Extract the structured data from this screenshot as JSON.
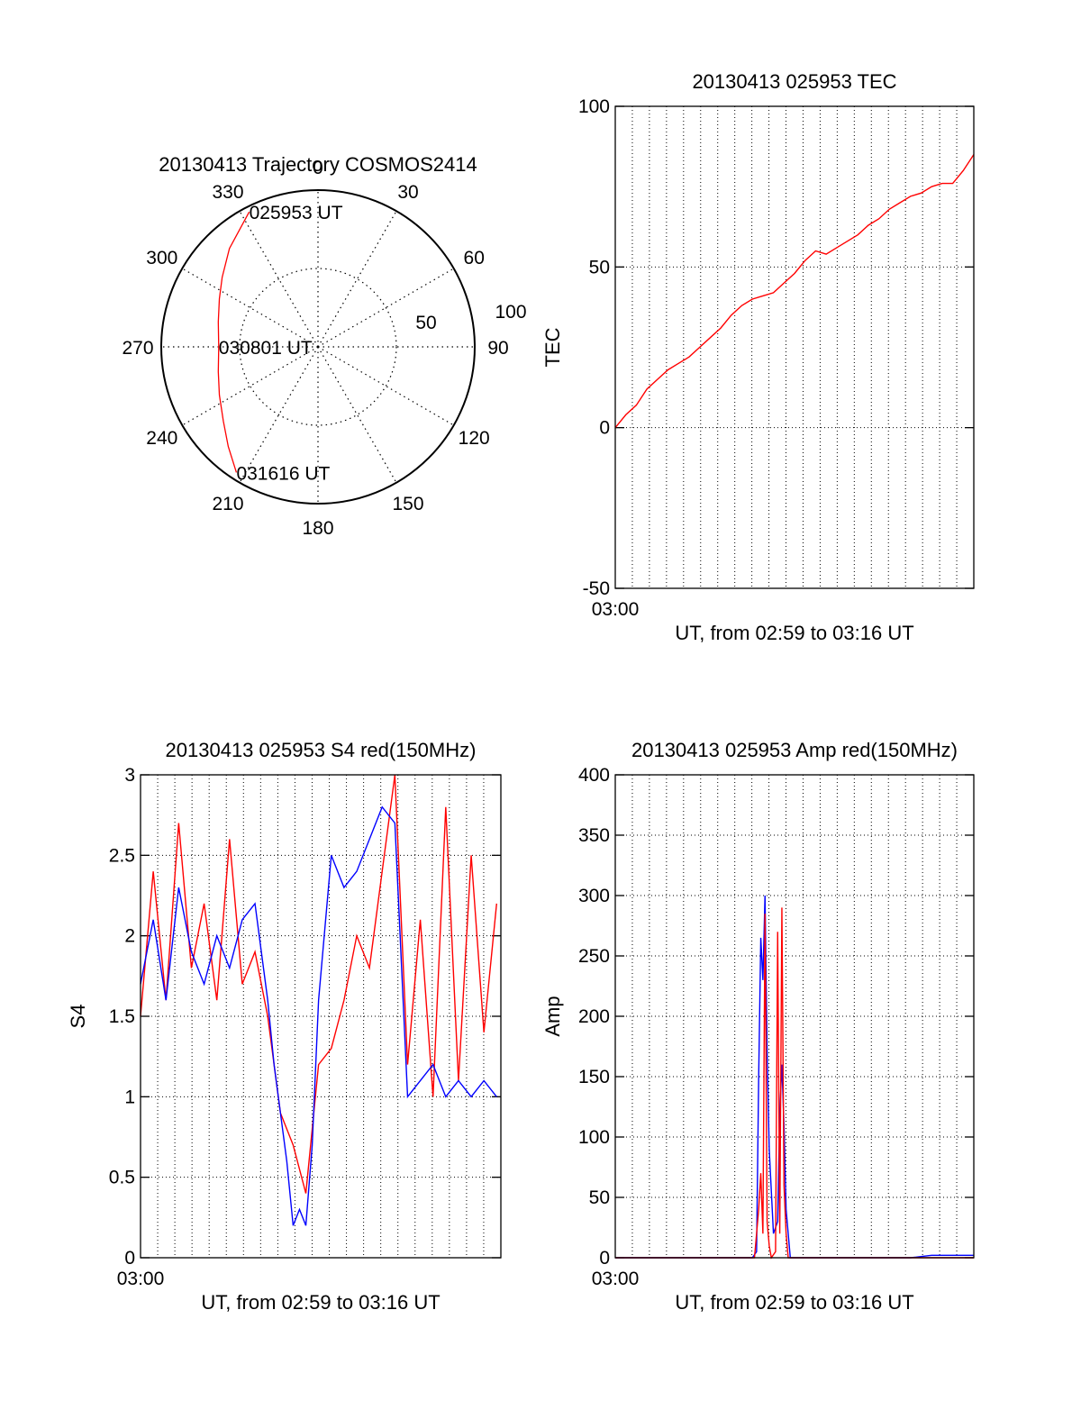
{
  "chart_data": [
    {
      "type": "polar",
      "title": "20130413 Trajectory COSMOS2414",
      "angle_labels": [
        "0",
        "30",
        "60",
        "90",
        "120",
        "150",
        "180",
        "210",
        "240",
        "270",
        "300",
        "330"
      ],
      "radial_labels": [
        "50",
        "100"
      ],
      "trajectory_color": "#ff0000",
      "trajectory": [
        {
          "az": 333,
          "el": 3
        },
        {
          "az": 318,
          "el": 14
        },
        {
          "az": 306,
          "el": 22
        },
        {
          "az": 296,
          "el": 27
        },
        {
          "az": 284,
          "el": 31
        },
        {
          "az": 270,
          "el": 33
        },
        {
          "az": 256,
          "el": 31
        },
        {
          "az": 244,
          "el": 27
        },
        {
          "az": 232,
          "el": 21
        },
        {
          "az": 222,
          "el": 13
        },
        {
          "az": 213,
          "el": 4
        }
      ],
      "annotations": [
        {
          "text": "025953 UT",
          "az": 333,
          "el": 3
        },
        {
          "text": "030801 UT",
          "az": 270,
          "el": 33
        },
        {
          "text": "031616 UT",
          "az": 213,
          "el": 4
        }
      ]
    },
    {
      "type": "line",
      "title": "20130413 025953 TEC",
      "xlabel": "UT, from 02:59 to 03:16 UT",
      "ylabel": "TEC",
      "x_tick_label": "03:00",
      "ylim": [
        -50,
        100
      ],
      "y_ticks": [
        "100",
        "50",
        "0",
        "-50"
      ],
      "grid": true,
      "series": [
        {
          "color": "#ff0000",
          "x": [
            0,
            0.5,
            1,
            1.5,
            2,
            2.5,
            3,
            3.5,
            4,
            4.5,
            5,
            5.5,
            6,
            6.5,
            7,
            7.5,
            8,
            8.5,
            9,
            9.5,
            10,
            10.5,
            11,
            11.5,
            12,
            12.5,
            13,
            13.5,
            14,
            14.5,
            15,
            15.5,
            16,
            16.5,
            17
          ],
          "y": [
            0,
            4,
            7,
            12,
            15,
            18,
            20,
            22,
            25,
            28,
            31,
            35,
            38,
            40,
            41,
            42,
            45,
            48,
            52,
            55,
            54,
            56,
            58,
            60,
            63,
            65,
            68,
            70,
            72,
            73,
            75,
            76,
            76,
            80,
            85
          ]
        }
      ]
    },
    {
      "type": "line",
      "title": "20130413 025953 S4 red(150MHz)",
      "xlabel": "UT, from 02:59 to 03:16 UT",
      "ylabel": "S4",
      "x_tick_label": "03:00",
      "ylim": [
        0,
        3
      ],
      "y_ticks": [
        "3",
        "2.5",
        "2",
        "1.5",
        "1",
        "0.5",
        "0"
      ],
      "grid": true,
      "series": [
        {
          "color": "#ff0000",
          "x": [
            0,
            0.6,
            1.2,
            1.8,
            2.4,
            3,
            3.6,
            4.2,
            4.8,
            5.4,
            6,
            6.6,
            7.2,
            7.8,
            8.4,
            9,
            9.6,
            10.2,
            10.8,
            11.4,
            12,
            12.6,
            13.2,
            13.8,
            14.4,
            15,
            15.6,
            16.2,
            16.8
          ],
          "y": [
            1.5,
            2.4,
            1.6,
            2.7,
            1.8,
            2.2,
            1.6,
            2.6,
            1.7,
            1.9,
            1.5,
            0.9,
            0.7,
            0.4,
            1.2,
            1.3,
            1.6,
            2.0,
            1.8,
            2.4,
            3.0,
            1.2,
            2.1,
            1.0,
            2.8,
            1.1,
            2.5,
            1.4,
            2.2
          ]
        },
        {
          "color": "#0000ff",
          "x": [
            0,
            0.6,
            1.2,
            1.8,
            2.4,
            3,
            3.6,
            4.2,
            4.8,
            5.4,
            6,
            6.3,
            6.6,
            6.9,
            7.2,
            7.5,
            7.8,
            8.1,
            8.4,
            9,
            9.6,
            10.2,
            10.8,
            11.4,
            12,
            12.6,
            13.2,
            13.8,
            14.4,
            15,
            15.6,
            16.2,
            16.8
          ],
          "y": [
            1.7,
            2.1,
            1.6,
            2.3,
            1.9,
            1.7,
            2.0,
            1.8,
            2.1,
            2.2,
            1.6,
            1.2,
            0.9,
            0.6,
            0.2,
            0.3,
            0.2,
            0.7,
            1.6,
            2.5,
            2.3,
            2.4,
            2.6,
            2.8,
            2.7,
            1.0,
            1.1,
            1.2,
            1.0,
            1.1,
            1.0,
            1.1,
            1.0
          ]
        }
      ]
    },
    {
      "type": "line",
      "title": "20130413 025953 Amp red(150MHz)",
      "xlabel": "UT, from 02:59 to 03:16 UT",
      "ylabel": "Amp",
      "x_tick_label": "03:00",
      "ylim": [
        0,
        400
      ],
      "y_ticks": [
        "400",
        "350",
        "300",
        "250",
        "200",
        "150",
        "100",
        "50",
        "0"
      ],
      "grid": true,
      "series": [
        {
          "color": "#0000ff",
          "x": [
            0,
            6.5,
            6.7,
            6.8,
            6.9,
            7.0,
            7.1,
            7.2,
            7.3,
            7.5,
            7.7,
            7.8,
            7.9,
            8.0,
            8.1,
            8.3,
            10,
            14,
            15,
            16,
            17
          ],
          "y": [
            0,
            0,
            5,
            150,
            265,
            230,
            300,
            170,
            90,
            20,
            30,
            120,
            160,
            110,
            40,
            0,
            0,
            0,
            2,
            2,
            2
          ]
        },
        {
          "color": "#ff0000",
          "x": [
            0,
            6.6,
            6.8,
            6.9,
            7.0,
            7.1,
            7.2,
            7.3,
            7.4,
            7.6,
            7.7,
            7.8,
            7.9,
            8.0,
            8.1,
            8.2,
            17
          ],
          "y": [
            0,
            0,
            40,
            70,
            20,
            285,
            30,
            10,
            0,
            5,
            270,
            20,
            290,
            60,
            20,
            0,
            0
          ]
        }
      ]
    }
  ]
}
